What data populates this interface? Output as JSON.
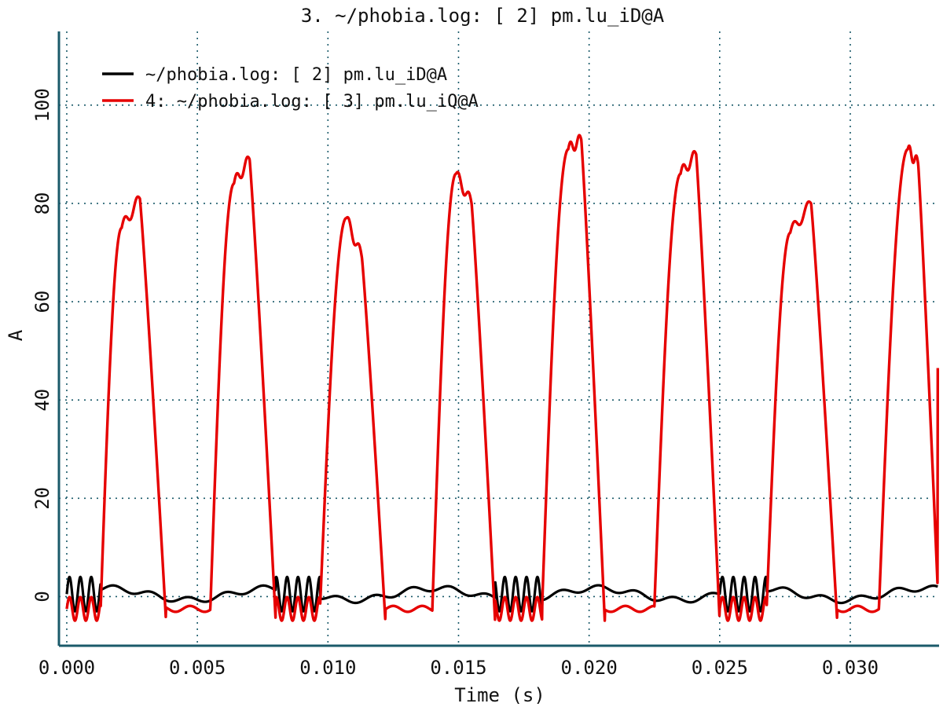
{
  "chart_data": {
    "type": "line",
    "title": "3. ~/phobia.log: [ 2] pm.lu_iD@A",
    "xlabel": "Time (s)",
    "ylabel": "A",
    "xlim": [
      -0.0003,
      0.0334
    ],
    "ylim": [
      -10,
      115
    ],
    "x_ticks": [
      "0.000",
      "0.005",
      "0.010",
      "0.015",
      "0.020",
      "0.025",
      "0.030"
    ],
    "x_tick_values": [
      0.0,
      0.005,
      0.01,
      0.015,
      0.02,
      0.025,
      0.03
    ],
    "y_ticks": [
      "0",
      "20",
      "40",
      "60",
      "80",
      "100"
    ],
    "y_tick_values": [
      0,
      20,
      40,
      60,
      80,
      100
    ],
    "grid": true,
    "legend_position": "top-left",
    "phase_period_s": 0.00425,
    "series": [
      {
        "name": "~/phobia.log: [ 2] pm.lu_iD@A",
        "color": "#000000",
        "baseline": 0.5,
        "ripple_amplitude": 3.5,
        "ripple_frequency_hz": 2400
      },
      {
        "name": "4: ~/phobia.log: [ 3] pm.lu_iQ@A",
        "color": "#e60000",
        "peaks": [
          {
            "x_start": 0.0013,
            "x_top1": 0.0021,
            "y_top1": 75,
            "x_top2": 0.0028,
            "y_top2": 81,
            "x_end": 0.0038
          },
          {
            "x_start": 0.0055,
            "x_top1": 0.0064,
            "y_top1": 84,
            "x_top2": 0.007,
            "y_top2": 89,
            "x_end": 0.008
          },
          {
            "x_start": 0.0097,
            "x_top1": 0.0107,
            "y_top1": 77,
            "x_top2": 0.0113,
            "y_top2": 69,
            "x_end": 0.0122
          },
          {
            "x_start": 0.014,
            "x_top1": 0.0149,
            "y_top1": 86,
            "x_top2": 0.0155,
            "y_top2": 80,
            "x_end": 0.0164
          },
          {
            "x_start": 0.0182,
            "x_top1": 0.0192,
            "y_top1": 91,
            "x_top2": 0.0197,
            "y_top2": 93,
            "x_end": 0.0206
          },
          {
            "x_start": 0.0225,
            "x_top1": 0.0235,
            "y_top1": 86,
            "x_top2": 0.0241,
            "y_top2": 90,
            "x_end": 0.025
          },
          {
            "x_start": 0.0268,
            "x_top1": 0.0277,
            "y_top1": 74,
            "x_top2": 0.0285,
            "y_top2": 80,
            "x_end": 0.0295
          },
          {
            "x_start": 0.0311,
            "x_top1": 0.0322,
            "y_top1": 91,
            "x_top2": 0.0326,
            "y_top2": 88,
            "x_end": 0.0334
          }
        ],
        "trough_value": -5,
        "last_value": 46.5
      }
    ]
  }
}
